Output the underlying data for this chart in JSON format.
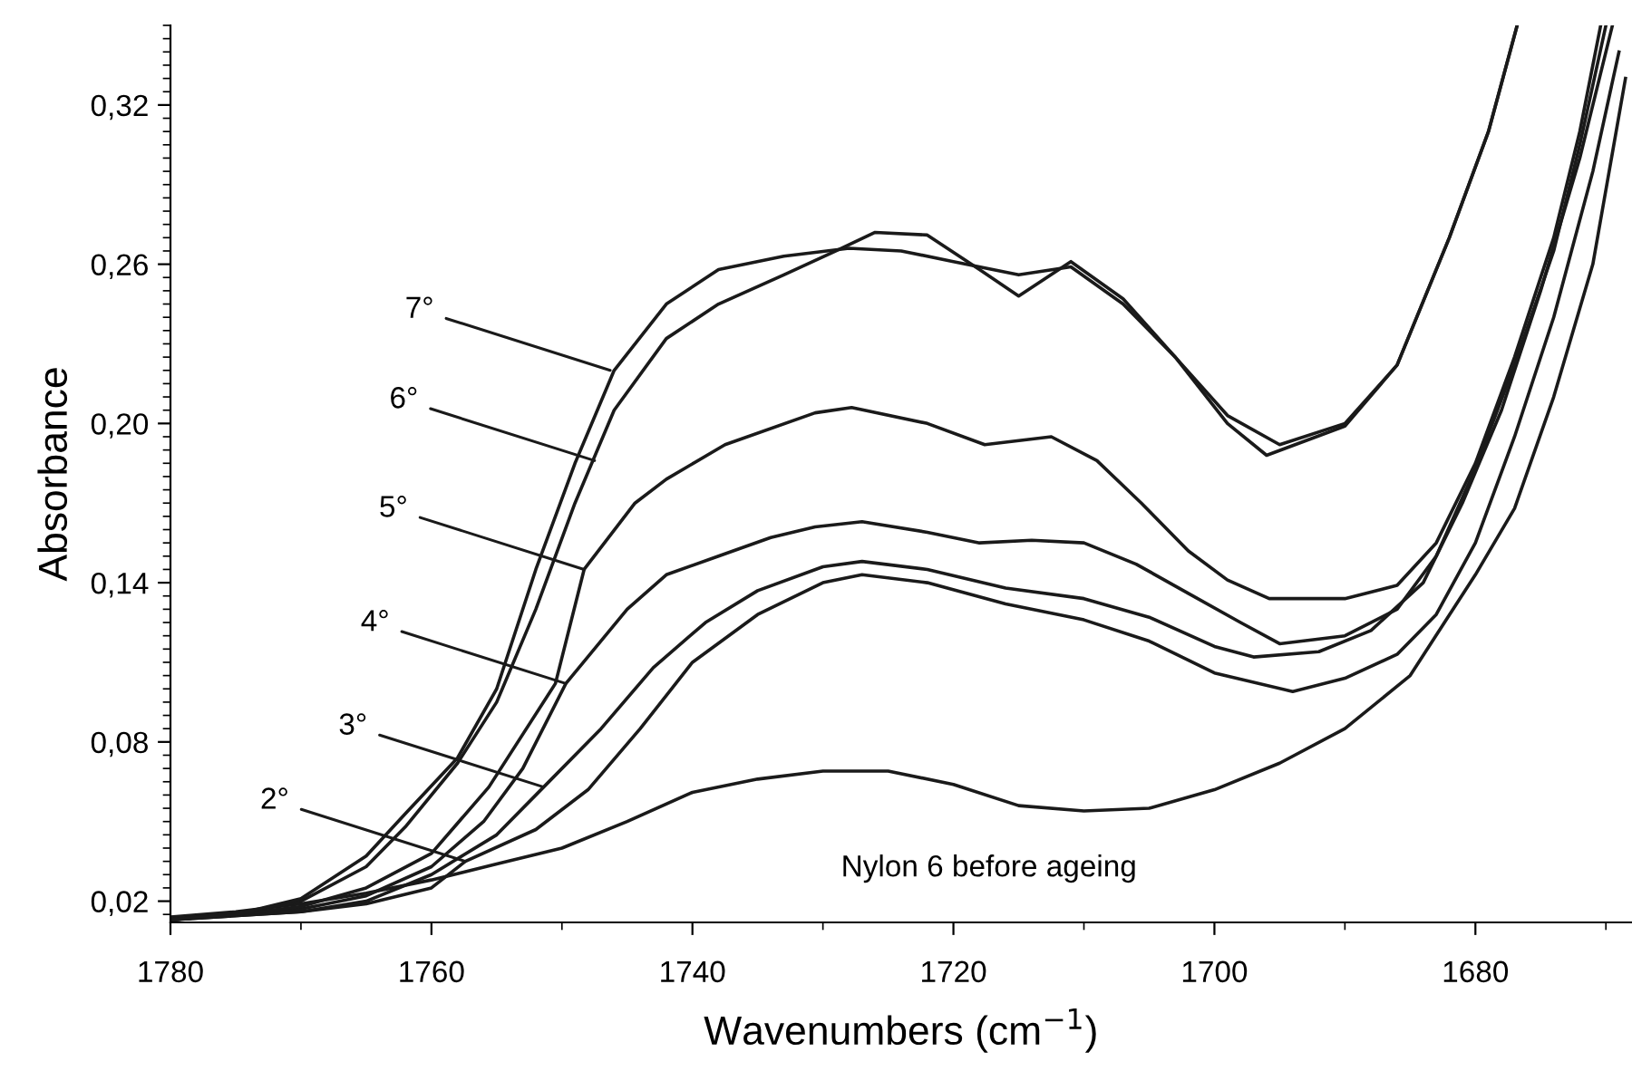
{
  "chart_data": {
    "type": "line",
    "xlabel": "Wavenumbers (cm$^{−1}$)",
    "ylabel": "Absorbance",
    "xlim": [
      1780,
      1668
    ],
    "ylim": [
      0.012,
      0.35
    ],
    "xticks": [
      1780,
      1760,
      1740,
      1720,
      1700,
      1680
    ],
    "yticks": [
      {
        "value": 0.02,
        "label": "0,02"
      },
      {
        "value": 0.08,
        "label": "0,08"
      },
      {
        "value": 0.14,
        "label": "0,14"
      },
      {
        "value": 0.2,
        "label": "0,20"
      },
      {
        "value": 0.26,
        "label": "0,26"
      },
      {
        "value": 0.32,
        "label": "0,32"
      }
    ],
    "marker": "none",
    "line_style": "solid",
    "series": [
      {
        "color": "#1a1a1a",
        "x": [
          1780,
          1775,
          1770,
          1765,
          1760,
          1755,
          1750,
          1745,
          1740,
          1735,
          1730,
          1725,
          1720,
          1715,
          1710,
          1705,
          1700,
          1695,
          1690,
          1685,
          1680,
          1677,
          1674,
          1671,
          1668.5
        ],
        "values": [
          0.014,
          0.016,
          0.019,
          0.023,
          0.028,
          0.034,
          0.04,
          0.05,
          0.061,
          0.066,
          0.069,
          0.069,
          0.064,
          0.056,
          0.054,
          0.055,
          0.062,
          0.072,
          0.085,
          0.105,
          0.143,
          0.168,
          0.21,
          0.26,
          0.33
        ]
      },
      {
        "color": "#1a1a1a",
        "x": [
          1780,
          1770,
          1765,
          1760,
          1757.4,
          1752,
          1748,
          1744,
          1740,
          1735,
          1730,
          1727,
          1722,
          1716,
          1710,
          1705,
          1700,
          1694,
          1690,
          1686,
          1683,
          1680,
          1677,
          1674,
          1671,
          1669
        ],
        "values": [
          0.013,
          0.016,
          0.019,
          0.025,
          0.035,
          0.047,
          0.062,
          0.085,
          0.11,
          0.128,
          0.14,
          0.143,
          0.14,
          0.132,
          0.126,
          0.118,
          0.106,
          0.099,
          0.104,
          0.113,
          0.128,
          0.155,
          0.195,
          0.24,
          0.295,
          0.34
        ]
      },
      {
        "color": "#1a1a1a",
        "x": [
          1780,
          1770,
          1765,
          1760,
          1755,
          1751.4,
          1747,
          1743,
          1739,
          1735,
          1730,
          1727,
          1722,
          1716,
          1710,
          1705,
          1700,
          1697,
          1692,
          1688,
          1684,
          1681,
          1678,
          1675,
          1672,
          1669.5
        ],
        "values": [
          0.013,
          0.016,
          0.02,
          0.03,
          0.045,
          0.063,
          0.085,
          0.108,
          0.125,
          0.137,
          0.146,
          0.148,
          0.145,
          0.138,
          0.134,
          0.127,
          0.116,
          0.112,
          0.114,
          0.122,
          0.14,
          0.17,
          0.205,
          0.25,
          0.3,
          0.35
        ]
      },
      {
        "color": "#1a1a1a",
        "x": [
          1780,
          1770,
          1765,
          1760,
          1756,
          1753,
          1749.7,
          1745,
          1742,
          1738,
          1734,
          1730.6,
          1727,
          1722,
          1718,
          1714,
          1710,
          1706,
          1702,
          1698,
          1695,
          1690,
          1686,
          1683,
          1680,
          1677,
          1674,
          1672,
          1670
        ],
        "values": [
          0.013,
          0.017,
          0.022,
          0.033,
          0.05,
          0.07,
          0.102,
          0.13,
          0.143,
          0.15,
          0.157,
          0.161,
          0.163,
          0.159,
          0.155,
          0.156,
          0.155,
          0.147,
          0.136,
          0.125,
          0.117,
          0.12,
          0.13,
          0.15,
          0.183,
          0.222,
          0.265,
          0.305,
          0.35
        ]
      },
      {
        "color": "#1a1a1a",
        "x": [
          1780,
          1775,
          1770,
          1765,
          1760,
          1755.6,
          1750.5,
          1748.3,
          1744.4,
          1742,
          1737.5,
          1730.6,
          1727.8,
          1722,
          1717.6,
          1712.5,
          1709,
          1705.6,
          1702,
          1699,
          1695.8,
          1690,
          1686,
          1683,
          1680,
          1677,
          1674,
          1672,
          1670.4
        ],
        "values": [
          0.013,
          0.015,
          0.018,
          0.025,
          0.038,
          0.063,
          0.102,
          0.145,
          0.17,
          0.179,
          0.192,
          0.204,
          0.206,
          0.2,
          0.192,
          0.195,
          0.186,
          0.17,
          0.152,
          0.141,
          0.134,
          0.134,
          0.139,
          0.155,
          0.185,
          0.225,
          0.27,
          0.31,
          0.35
        ]
      },
      {
        "color": "#1a1a1a",
        "x": [
          1780,
          1775,
          1770,
          1765,
          1762,
          1758,
          1755,
          1752,
          1749,
          1746,
          1742,
          1738,
          1733,
          1729,
          1726,
          1722,
          1718,
          1715,
          1711,
          1707,
          1703,
          1699,
          1696,
          1690,
          1686,
          1682,
          1679,
          1676.8
        ],
        "values": [
          0.013,
          0.015,
          0.02,
          0.033,
          0.048,
          0.072,
          0.095,
          0.13,
          0.17,
          0.205,
          0.232,
          0.245,
          0.256,
          0.265,
          0.272,
          0.271,
          0.258,
          0.248,
          0.261,
          0.247,
          0.225,
          0.2,
          0.188,
          0.199,
          0.222,
          0.27,
          0.31,
          0.35
        ]
      },
      {
        "color": "#1a1a1a",
        "x": [
          1780,
          1775,
          1770,
          1765,
          1762,
          1758,
          1755,
          1752,
          1749,
          1746,
          1742,
          1738,
          1733,
          1728,
          1724,
          1720,
          1715,
          1711,
          1707,
          1703,
          1699,
          1695,
          1690,
          1686,
          1682,
          1679,
          1676.8
        ],
        "values": [
          0.013,
          0.015,
          0.021,
          0.037,
          0.053,
          0.074,
          0.1,
          0.145,
          0.185,
          0.22,
          0.245,
          0.258,
          0.263,
          0.266,
          0.265,
          0.261,
          0.256,
          0.259,
          0.245,
          0.225,
          0.203,
          0.192,
          0.2,
          0.222,
          0.27,
          0.31,
          0.35
        ]
      }
    ],
    "annotations": [
      {
        "text": "7°",
        "x": 1746.3,
        "y": 0.22
      },
      {
        "text": "6°",
        "x": 1747.5,
        "y": 0.186
      },
      {
        "text": "5°",
        "x": 1748.3,
        "y": 0.145
      },
      {
        "text": "4°",
        "x": 1749.7,
        "y": 0.102
      },
      {
        "text": "3°",
        "x": 1751.4,
        "y": 0.063
      },
      {
        "text": "2°",
        "x": 1757.4,
        "y": 0.035
      },
      "Nylon 6 before ageing"
    ]
  }
}
